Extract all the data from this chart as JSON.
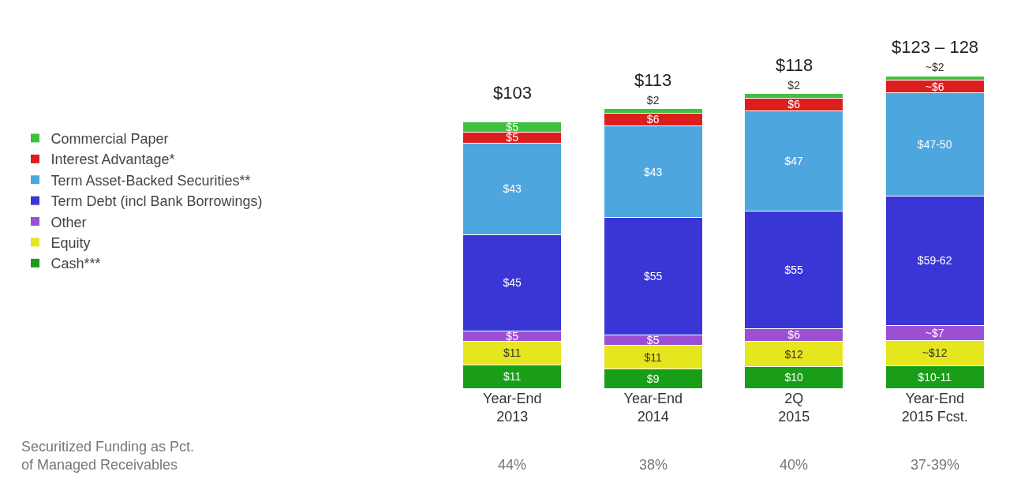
{
  "chart_data": {
    "type": "bar",
    "stacked": true,
    "categories": [
      "Year-End\n2013",
      "Year-End\n2014",
      "2Q\n2015",
      "Year-End\n2015 Fcst."
    ],
    "series": [
      {
        "name": "Cash***",
        "color": "#1a9e1a",
        "values": [
          11,
          9,
          10,
          10.5
        ],
        "value_labels": [
          "$11",
          "$9",
          "$10",
          "$10-11"
        ]
      },
      {
        "name": "Equity",
        "color": "#e6e61e",
        "values": [
          11,
          11,
          12,
          12
        ],
        "value_labels": [
          "$11",
          "$11",
          "$12",
          "~$12"
        ]
      },
      {
        "name": "Other",
        "color": "#9b4fd2",
        "values": [
          5,
          5,
          6,
          7
        ],
        "value_labels": [
          "$5",
          "$5",
          "$6",
          "~$7"
        ]
      },
      {
        "name": "Term Debt (incl Bank Borrowings)",
        "color": "#3a36d6",
        "values": [
          45,
          55,
          55,
          60.5
        ],
        "value_labels": [
          "$45",
          "$55",
          "$55",
          "$59-62"
        ]
      },
      {
        "name": "Term Asset-Backed Securities**",
        "color": "#4ea6df",
        "values": [
          43,
          43,
          47,
          48.5
        ],
        "value_labels": [
          "$43",
          "$43",
          "$47",
          "$47-50"
        ]
      },
      {
        "name": "Interest Advantage*",
        "color": "#dd1e1e",
        "values": [
          5,
          6,
          6,
          6
        ],
        "value_labels": [
          "$5",
          "$6",
          "$6",
          "~$6"
        ]
      },
      {
        "name": "Commercial Paper",
        "color": "#3ec23e",
        "values": [
          5,
          2,
          2,
          2
        ],
        "value_labels": [
          "$5",
          "$2",
          "$2",
          "~$2"
        ]
      }
    ],
    "tick_labels": "x",
    "legend": "left",
    "annotations": [
      "$103",
      "$113",
      "$118",
      "$123 – 128",
      "Securitized Funding as Pct.\nof Managed Receivables",
      "44%",
      "38%",
      "40%",
      "37-39%"
    ]
  }
}
